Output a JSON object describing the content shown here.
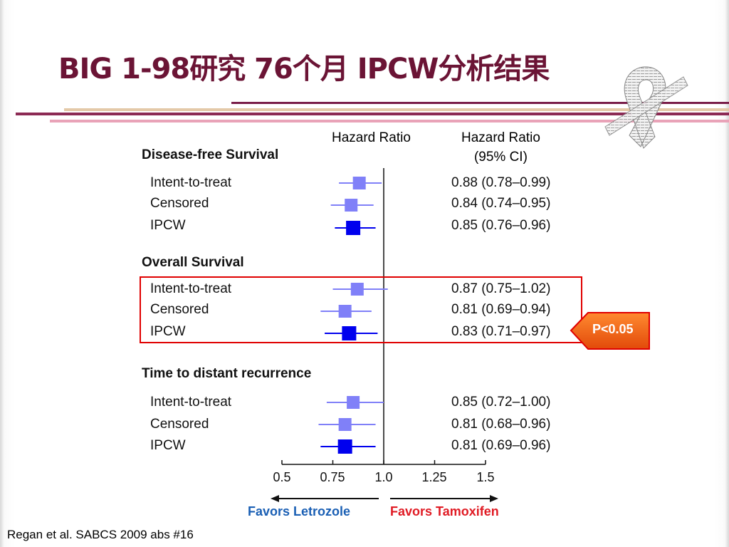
{
  "title": "BIG 1-98研究 76个月 IPCW分析结果",
  "header": {
    "hr_col": "Hazard Ratio",
    "ci_col_line1": "Hazard Ratio",
    "ci_col_line2": "(95% CI)"
  },
  "highlight_note": "P<0.05",
  "favors_left": "Favors Letrozole",
  "favors_right": "Favors Tamoxifen",
  "citation": "Regan et al. SABCS 2009 abs #16",
  "colors": {
    "title": "#6b1435",
    "light": "#8080f8",
    "dark": "#0000ee",
    "highlight": "#e00000",
    "badge": "#f05a14"
  },
  "chart_data": {
    "type": "forest",
    "xlim": [
      0.5,
      1.5
    ],
    "ticks": [
      {
        "value": 0.5,
        "label": "0.5"
      },
      {
        "value": 0.75,
        "label": "0.75"
      },
      {
        "value": 1.0,
        "label": "1.0"
      },
      {
        "value": 1.25,
        "label": "1.25"
      },
      {
        "value": 1.5,
        "label": "1.5"
      }
    ],
    "reference_line": 1.0,
    "groups": [
      {
        "name": "Disease-free Survival",
        "rows": [
          {
            "label": "Intent-to-treat",
            "hr": 0.88,
            "lo": 0.78,
            "hi": 0.99,
            "text": "0.88 (0.78–0.99)",
            "style": "light"
          },
          {
            "label": "Censored",
            "hr": 0.84,
            "lo": 0.74,
            "hi": 0.95,
            "text": "0.84 (0.74–0.95)",
            "style": "light"
          },
          {
            "label": "IPCW",
            "hr": 0.85,
            "lo": 0.76,
            "hi": 0.96,
            "text": "0.85 (0.76–0.96)",
            "style": "dark"
          }
        ]
      },
      {
        "name": "Overall Survival",
        "rows": [
          {
            "label": "Intent-to-treat",
            "hr": 0.87,
            "lo": 0.75,
            "hi": 1.02,
            "text": "0.87 (0.75–1.02)",
            "style": "light"
          },
          {
            "label": "Censored",
            "hr": 0.81,
            "lo": 0.69,
            "hi": 0.94,
            "text": "0.81 (0.69–0.94)",
            "style": "light"
          },
          {
            "label": "IPCW",
            "hr": 0.83,
            "lo": 0.71,
            "hi": 0.97,
            "text": "0.83 (0.71–0.97)",
            "style": "dark"
          }
        ]
      },
      {
        "name": "Time to distant recurrence",
        "rows": [
          {
            "label": "Intent-to-treat",
            "hr": 0.85,
            "lo": 0.72,
            "hi": 1.0,
            "text": "0.85 (0.72–1.00)",
            "style": "light"
          },
          {
            "label": "Censored",
            "hr": 0.81,
            "lo": 0.68,
            "hi": 0.96,
            "text": "0.81 (0.68–0.96)",
            "style": "light"
          },
          {
            "label": "IPCW",
            "hr": 0.81,
            "lo": 0.69,
            "hi": 0.96,
            "text": "0.81 (0.69–0.96)",
            "style": "dark"
          }
        ]
      }
    ]
  }
}
